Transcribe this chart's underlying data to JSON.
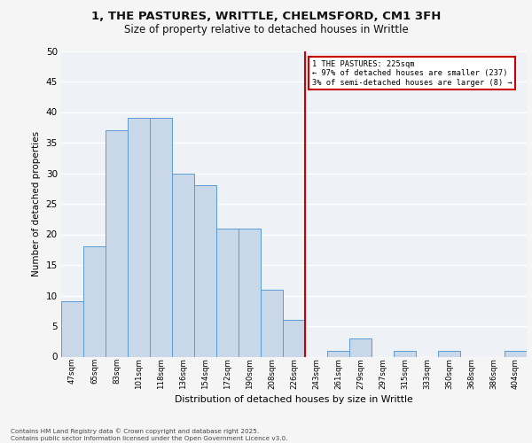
{
  "title_line1": "1, THE PASTURES, WRITTLE, CHELMSFORD, CM1 3FH",
  "title_line2": "Size of property relative to detached houses in Writtle",
  "xlabel": "Distribution of detached houses by size in Writtle",
  "ylabel": "Number of detached properties",
  "categories": [
    "47sqm",
    "65sqm",
    "83sqm",
    "101sqm",
    "118sqm",
    "136sqm",
    "154sqm",
    "172sqm",
    "190sqm",
    "208sqm",
    "226sqm",
    "243sqm",
    "261sqm",
    "279sqm",
    "297sqm",
    "315sqm",
    "333sqm",
    "350sqm",
    "368sqm",
    "386sqm",
    "404sqm"
  ],
  "values": [
    9,
    18,
    37,
    39,
    39,
    30,
    28,
    21,
    21,
    11,
    6,
    0,
    1,
    3,
    0,
    1,
    0,
    1,
    0,
    0,
    1
  ],
  "bar_color": "#c8d8e8",
  "bar_edge_color": "#5b9bd5",
  "vline_color": "#cc0000",
  "annotation_title": "1 THE PASTURES: 225sqm",
  "annotation_line1": "← 97% of detached houses are smaller (237)",
  "annotation_line2": "3% of semi-detached houses are larger (8) →",
  "annotation_box_color": "#cc0000",
  "ylim": [
    0,
    50
  ],
  "yticks": [
    0,
    5,
    10,
    15,
    20,
    25,
    30,
    35,
    40,
    45,
    50
  ],
  "background_color": "#eef2f7",
  "grid_color": "#ffffff",
  "fig_background": "#f5f5f5",
  "footer_line1": "Contains HM Land Registry data © Crown copyright and database right 2025.",
  "footer_line2": "Contains public sector information licensed under the Open Government Licence v3.0."
}
